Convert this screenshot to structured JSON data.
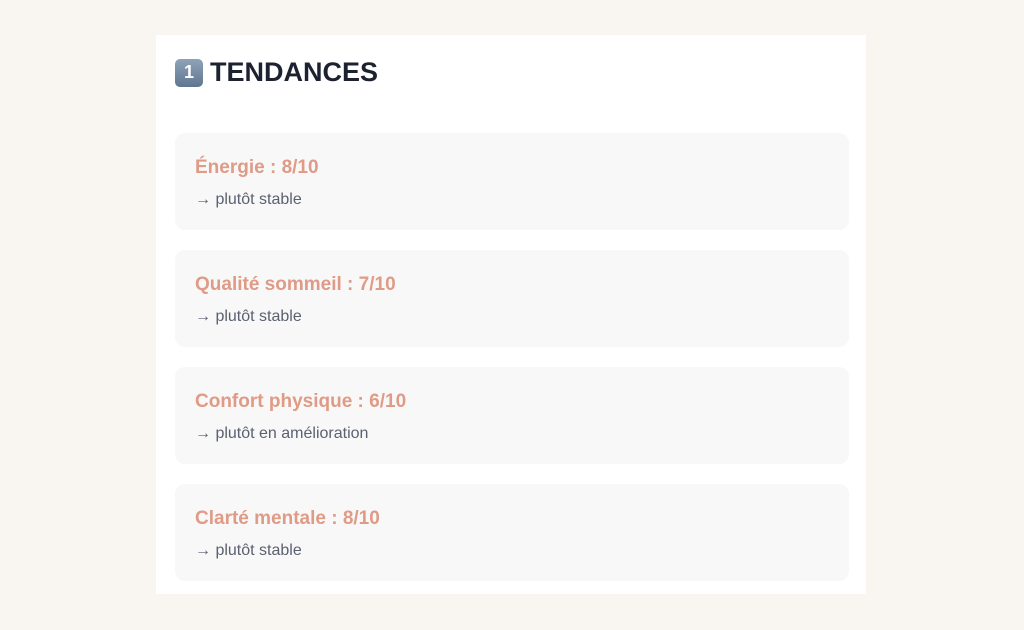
{
  "section": {
    "badge": "1",
    "title": "TENDANCES"
  },
  "items": [
    {
      "label": "Énergie : 8/10",
      "trend": "→ plutôt stable"
    },
    {
      "label": "Qualité sommeil : 7/10",
      "trend": "→ plutôt stable"
    },
    {
      "label": "Confort physique : 6/10",
      "trend": "→ plutôt en amélioration"
    },
    {
      "label": "Clarté mentale : 8/10",
      "trend": "→ plutôt stable"
    }
  ],
  "colors": {
    "accent": "#df9b86",
    "background": "#f9f6f2"
  }
}
